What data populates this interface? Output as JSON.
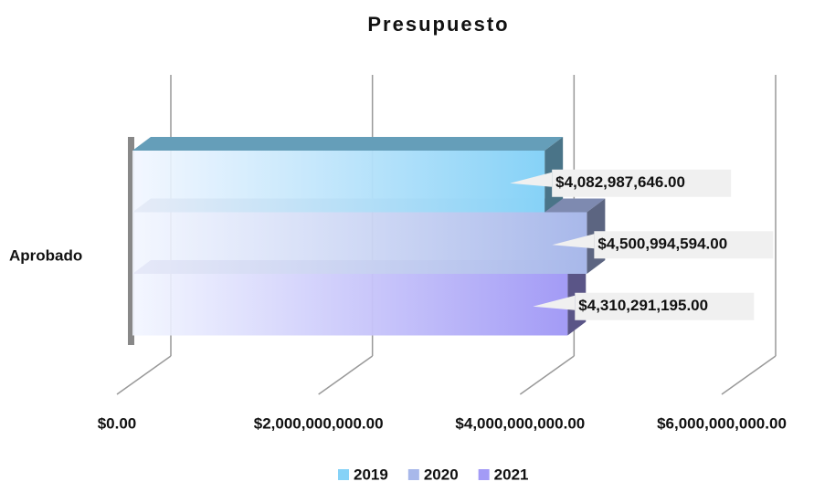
{
  "chart_data": {
    "type": "bar3d",
    "orientation": "horizontal",
    "title": "Presupuesto",
    "categories": [
      "Aprobado"
    ],
    "series": [
      {
        "name": "2019",
        "color": "#86d2f7",
        "values": [
          4082987646
        ],
        "value_labels": [
          "$4,082,987,646.00"
        ]
      },
      {
        "name": "2020",
        "color": "#a8b8ea",
        "values": [
          4500994594
        ],
        "value_labels": [
          "$4,500,994,594.00"
        ]
      },
      {
        "name": "2021",
        "color": "#a39bf6",
        "values": [
          4310291195
        ],
        "value_labels": [
          "$4,310,291,195.00"
        ]
      }
    ],
    "xlim": [
      0,
      6000000000
    ],
    "xticks": [
      {
        "value": 0,
        "label": "$0.00"
      },
      {
        "value": 2000000000,
        "label": "$2,000,000,000.00"
      },
      {
        "value": 4000000000,
        "label": "$4,000,000,000.00"
      },
      {
        "value": 6000000000,
        "label": "$6,000,000,000.00"
      }
    ],
    "grid": true,
    "legend": "bottom"
  }
}
